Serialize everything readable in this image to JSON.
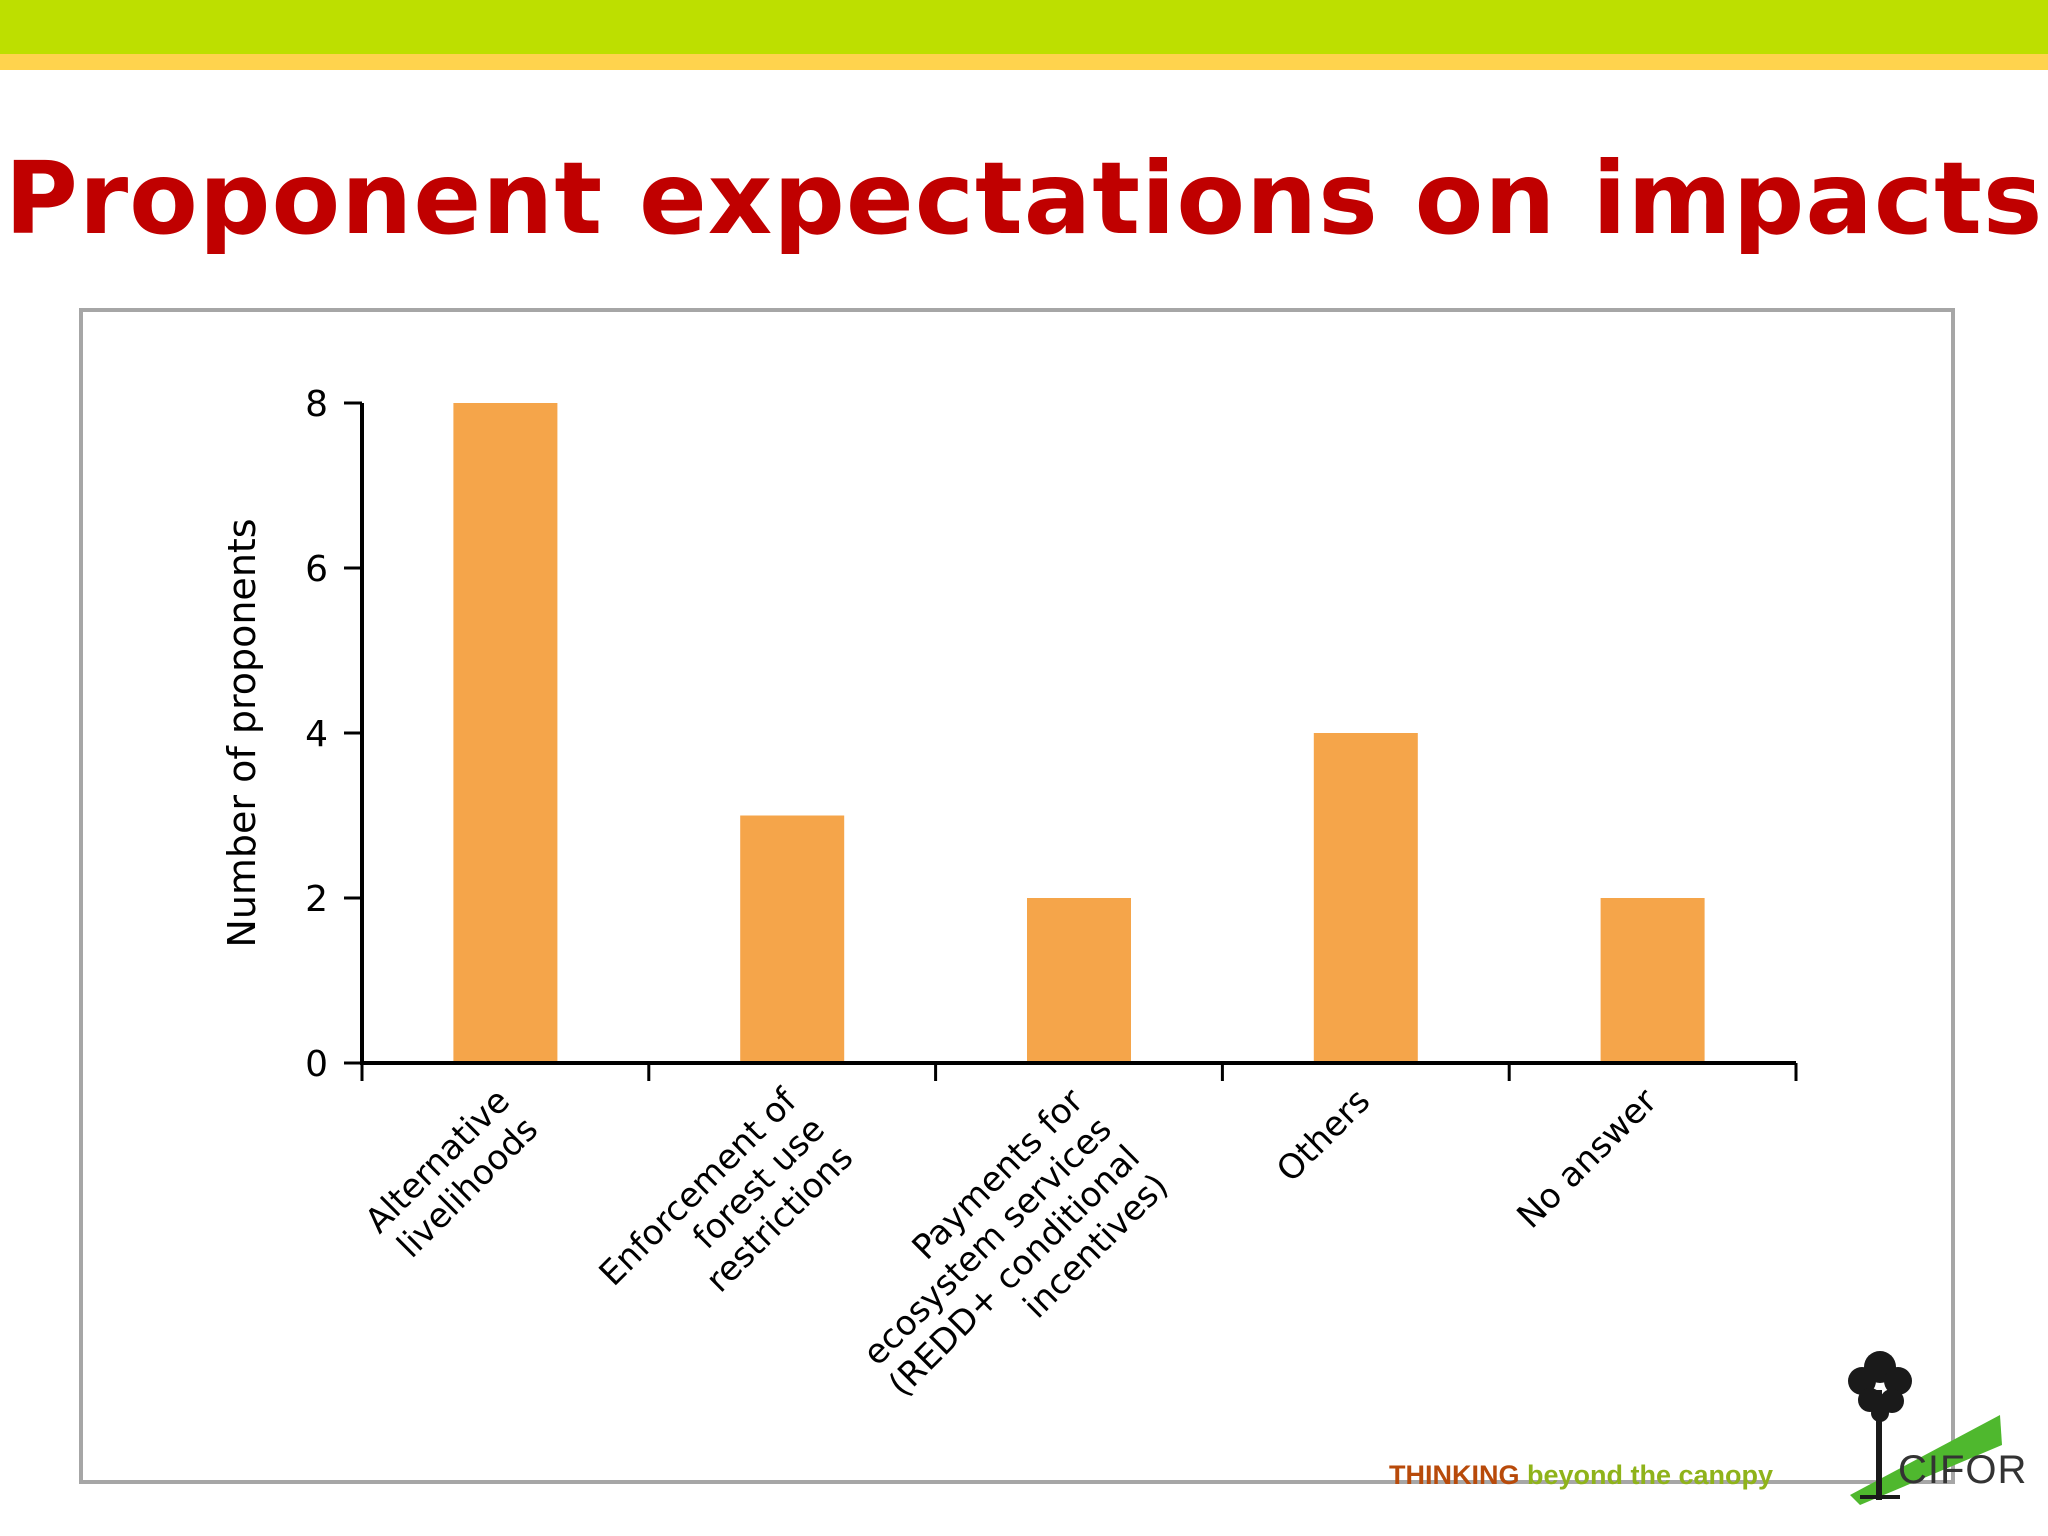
{
  "slide": {
    "title": "Proponent expectations on impacts",
    "tagline_strong": "THINKING",
    "tagline_rest": " beyond the canopy",
    "logo_text": "CIFOR"
  },
  "colors": {
    "title": "#c00000",
    "bar": "#f5a54a",
    "top_band": "#bddf00",
    "top_band_accent": "#ffd34d",
    "frame": "#a6a6a6"
  },
  "chart_data": {
    "type": "bar",
    "title": "",
    "xlabel": "",
    "ylabel": "Number of proponents",
    "ylim": [
      0,
      8
    ],
    "yticks": [
      0,
      2,
      4,
      6,
      8
    ],
    "grid": false,
    "categories": [
      [
        "Alternative",
        "livelihoods"
      ],
      [
        "Enforcement of",
        "forest use",
        "restrictions"
      ],
      [
        "Payments for",
        "ecosystem services",
        "(REDD+ conditional",
        "incentives)"
      ],
      [
        "Others"
      ],
      [
        "No answer"
      ]
    ],
    "values": [
      8,
      3,
      2,
      4,
      2
    ]
  }
}
